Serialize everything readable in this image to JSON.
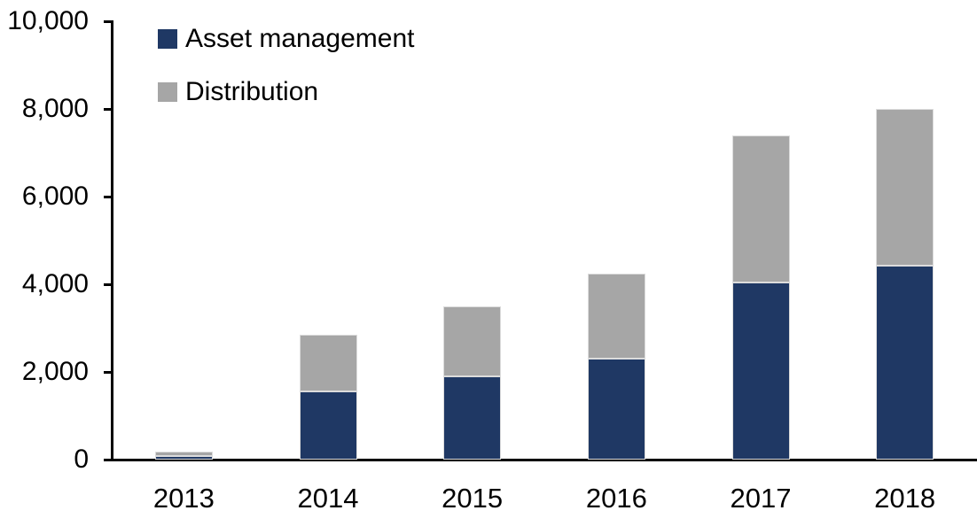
{
  "chart_data": {
    "type": "bar",
    "stacked": true,
    "title": "",
    "xlabel": "",
    "ylabel": "",
    "categories": [
      "2013",
      "2014",
      "2015",
      "2016",
      "2017",
      "2018"
    ],
    "series": [
      {
        "name": "Asset management",
        "color": "#1F3864",
        "values": [
          90,
          1550,
          1900,
          2300,
          4050,
          4420
        ]
      },
      {
        "name": "Distribution",
        "color": "#A6A6A6",
        "values": [
          100,
          1300,
          1600,
          1950,
          3350,
          3580
        ]
      }
    ],
    "stack_totals": [
      190,
      2850,
      3500,
      4250,
      7400,
      8000
    ],
    "ylim": [
      0,
      10000
    ],
    "ytick_interval": 2000,
    "ytick_labels": [
      "0",
      "2,000",
      "4,000",
      "6,000",
      "8,000",
      "10,000"
    ],
    "grid": false,
    "legend_position": "top-left-inside",
    "axis_color": "#000000",
    "text_color": "#000000",
    "background_color": "#FFFFFF",
    "bar_outline_color": "#DCDCDC"
  }
}
